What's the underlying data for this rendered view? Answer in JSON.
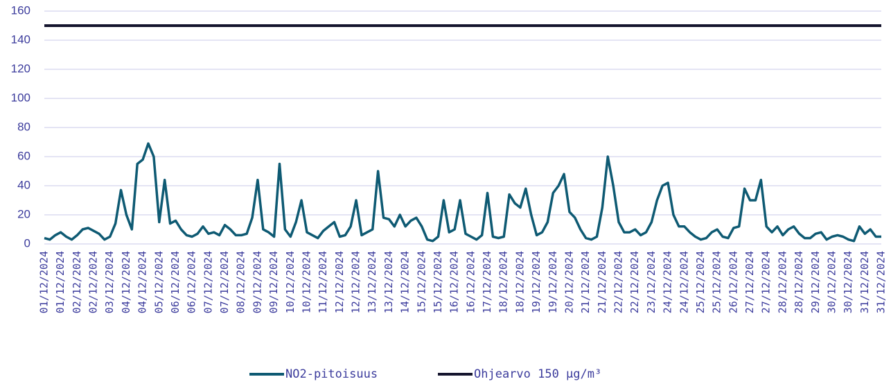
{
  "chart_data": {
    "type": "line",
    "categories": [
      "01/12/2024",
      null,
      null,
      "01/12/2024",
      null,
      null,
      "02/12/2024",
      null,
      null,
      "02/12/2024",
      null,
      null,
      "03/12/2024",
      null,
      null,
      "04/12/2024",
      null,
      null,
      "04/12/2024",
      null,
      null,
      "05/12/2024",
      null,
      null,
      "06/12/2024",
      null,
      null,
      "06/12/2024",
      null,
      null,
      "07/12/2024",
      null,
      null,
      "07/12/2024",
      null,
      null,
      "08/12/2024",
      null,
      null,
      "09/12/2024",
      null,
      null,
      "09/12/2024",
      null,
      null,
      "10/12/2024",
      null,
      null,
      "10/12/2024",
      null,
      null,
      "11/12/2024",
      null,
      null,
      "12/12/2024",
      null,
      null,
      "12/12/2024",
      null,
      null,
      "13/12/2024",
      null,
      null,
      "13/12/2024",
      null,
      null,
      "14/12/2024",
      null,
      null,
      "15/12/2024",
      null,
      null,
      "15/12/2024",
      null,
      null,
      "16/12/2024",
      null,
      null,
      "16/12/2024",
      null,
      null,
      "17/12/2024",
      null,
      null,
      "18/12/2024",
      null,
      null,
      "18/12/2024",
      null,
      null,
      "19/12/2024",
      null,
      null,
      "19/12/2024",
      null,
      null,
      "20/12/2024",
      null,
      null,
      "21/12/2024",
      null,
      null,
      "21/12/2024",
      null,
      null,
      "22/12/2024",
      null,
      null,
      "22/12/2024",
      null,
      null,
      "23/12/2024",
      null,
      null,
      "24/12/2024",
      null,
      null,
      "24/12/2024",
      null,
      null,
      "25/12/2024",
      null,
      null,
      "25/12/2024",
      null,
      null,
      "26/12/2024",
      null,
      null,
      "27/12/2024",
      null,
      null,
      "27/12/2024",
      null,
      null,
      "28/12/2024",
      null,
      null,
      "28/12/2024",
      null,
      null,
      "29/12/2024",
      null,
      null,
      "30/12/2024",
      null,
      null,
      "30/12/2024",
      null,
      null,
      "31/12/2024",
      null,
      null,
      "31/12/2024"
    ],
    "series": [
      {
        "name": "NO2-pitoisuus",
        "color": "#0e5a73",
        "values": [
          4,
          3,
          6,
          8,
          5,
          3,
          6,
          10,
          11,
          9,
          7,
          3,
          5,
          14,
          37,
          20,
          10,
          55,
          58,
          69,
          60,
          15,
          44,
          14,
          16,
          10,
          6,
          5,
          7,
          12,
          7,
          8,
          6,
          13,
          10,
          6,
          6,
          7,
          18,
          44,
          10,
          8,
          5,
          55,
          10,
          5,
          15,
          30,
          8,
          6,
          4,
          9,
          12,
          15,
          5,
          6,
          12,
          30,
          6,
          8,
          10,
          50,
          18,
          17,
          12,
          20,
          12,
          16,
          18,
          12,
          3,
          2,
          5,
          30,
          8,
          10,
          30,
          7,
          5,
          3,
          6,
          35,
          5,
          4,
          5,
          34,
          28,
          25,
          38,
          20,
          6,
          8,
          15,
          35,
          40,
          48,
          22,
          18,
          10,
          4,
          3,
          5,
          25,
          60,
          40,
          15,
          8,
          8,
          10,
          6,
          8,
          15,
          30,
          40,
          42,
          20,
          12,
          12,
          8,
          5,
          3,
          4,
          8,
          10,
          5,
          4,
          11,
          12,
          38,
          30,
          30,
          44,
          12,
          8,
          12,
          6,
          10,
          12,
          7,
          4,
          4,
          7,
          8,
          3,
          5,
          6,
          5,
          3,
          2,
          12,
          7,
          10,
          5,
          5
        ]
      },
      {
        "name": "Ohjearvo 150 µg/m³",
        "color": "#15152e",
        "values": [
          150,
          150,
          150,
          150,
          150,
          150,
          150,
          150,
          150,
          150,
          150,
          150,
          150,
          150,
          150,
          150,
          150,
          150,
          150,
          150,
          150,
          150,
          150,
          150,
          150,
          150,
          150,
          150,
          150,
          150,
          150,
          150,
          150,
          150,
          150,
          150,
          150,
          150,
          150,
          150,
          150,
          150,
          150,
          150,
          150,
          150,
          150,
          150,
          150,
          150,
          150,
          150,
          150,
          150,
          150,
          150,
          150,
          150,
          150,
          150,
          150,
          150,
          150,
          150,
          150,
          150,
          150,
          150,
          150,
          150,
          150,
          150,
          150,
          150,
          150,
          150,
          150,
          150,
          150,
          150,
          150,
          150,
          150,
          150,
          150,
          150,
          150,
          150,
          150,
          150,
          150,
          150,
          150,
          150,
          150,
          150,
          150,
          150,
          150,
          150,
          150,
          150,
          150,
          150,
          150,
          150,
          150,
          150,
          150,
          150,
          150,
          150,
          150,
          150,
          150,
          150,
          150,
          150,
          150,
          150,
          150,
          150,
          150,
          150,
          150,
          150,
          150,
          150,
          150,
          150,
          150,
          150,
          150,
          150,
          150,
          150,
          150,
          150,
          150,
          150,
          150,
          150,
          150,
          150,
          150,
          150,
          150,
          150,
          150,
          150,
          150,
          150,
          150,
          150
        ]
      }
    ],
    "ylim": [
      0,
      160
    ],
    "yticks": [
      0,
      20,
      40,
      60,
      80,
      100,
      120,
      140,
      160
    ],
    "grid": true
  }
}
